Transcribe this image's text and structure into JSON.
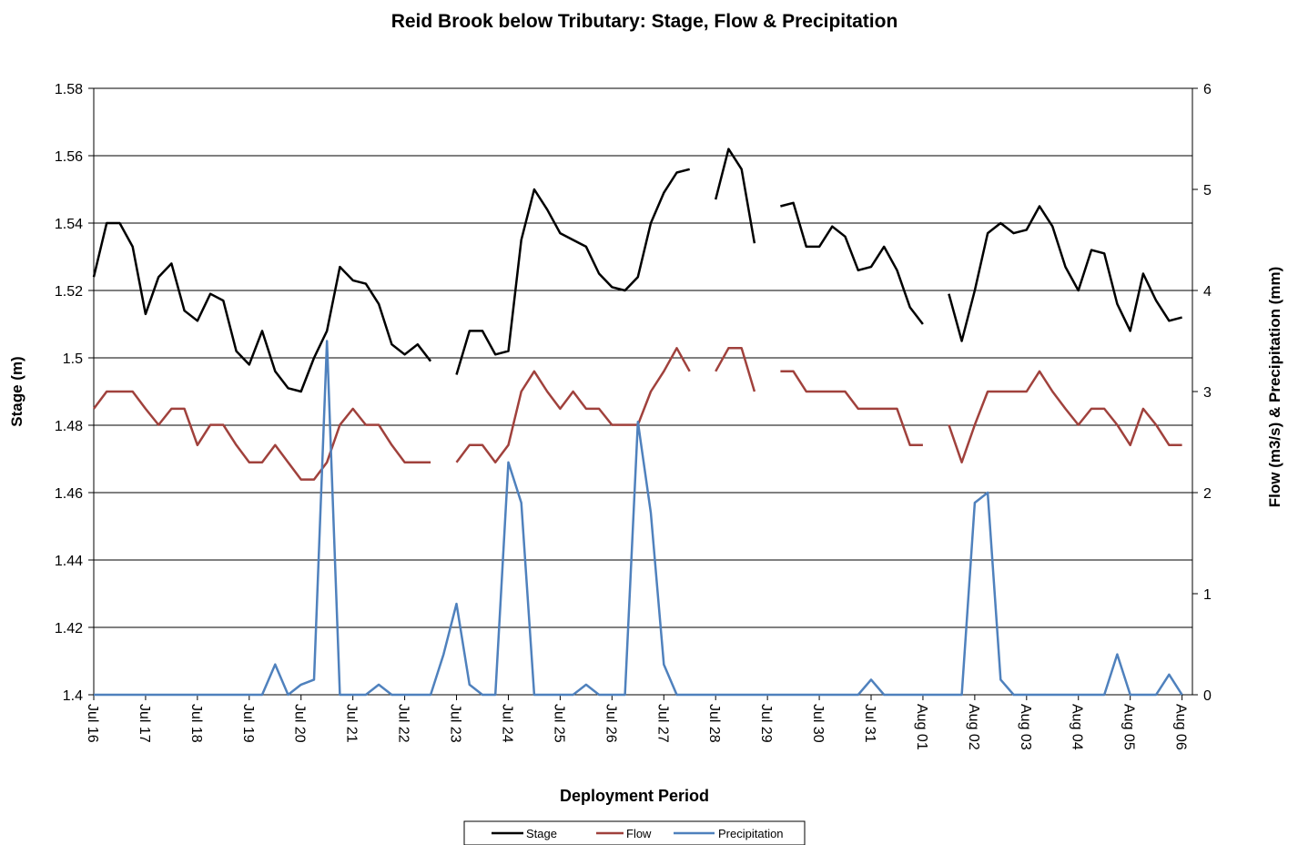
{
  "chart_data": {
    "type": "line",
    "title": "Reid Brook below Tributary:  Stage, Flow & Precipitation",
    "x_label": "Deployment Period",
    "y_label": "Stage (m)",
    "y2_label": "Flow (m3/s) & Precipitation (mm)",
    "x": [
      0,
      0.25,
      0.5,
      0.75,
      1,
      1.25,
      1.5,
      1.75,
      2,
      2.25,
      2.5,
      2.75,
      3,
      3.25,
      3.5,
      3.75,
      4,
      4.25,
      4.5,
      4.75,
      5,
      5.25,
      5.5,
      5.75,
      6,
      6.25,
      6.5,
      6.75,
      7,
      7.25,
      7.5,
      7.75,
      8,
      8.25,
      8.5,
      8.75,
      9,
      9.25,
      9.5,
      9.75,
      10,
      10.25,
      10.5,
      10.75,
      11,
      11.25,
      11.5,
      11.75,
      12,
      12.25,
      12.5,
      12.75,
      13,
      13.25,
      13.5,
      13.75,
      14,
      14.25,
      14.5,
      14.75,
      15,
      15.25,
      15.5,
      15.75,
      16,
      16.25,
      16.5,
      16.75,
      17,
      17.25,
      17.5,
      17.75,
      18,
      18.25,
      18.5,
      18.75,
      19,
      19.25,
      19.5,
      19.75,
      20,
      20.25,
      20.5,
      20.75,
      21
    ],
    "xlim": [
      0,
      21.2
    ],
    "xticks": [
      {
        "value": 0,
        "label": "Jul 16"
      },
      {
        "value": 1,
        "label": "Jul 17"
      },
      {
        "value": 2,
        "label": "Jul 18"
      },
      {
        "value": 3,
        "label": "Jul 19"
      },
      {
        "value": 4,
        "label": "Jul 20"
      },
      {
        "value": 5,
        "label": "Jul 21"
      },
      {
        "value": 6,
        "label": "Jul 22"
      },
      {
        "value": 7,
        "label": "Jul 23"
      },
      {
        "value": 8,
        "label": "Jul 24"
      },
      {
        "value": 9,
        "label": "Jul 25"
      },
      {
        "value": 10,
        "label": "Jul 26"
      },
      {
        "value": 11,
        "label": "Jul 27"
      },
      {
        "value": 12,
        "label": "Jul 28"
      },
      {
        "value": 13,
        "label": "Jul 29"
      },
      {
        "value": 14,
        "label": "Jul 30"
      },
      {
        "value": 15,
        "label": "Jul 31"
      },
      {
        "value": 16,
        "label": "Aug 01"
      },
      {
        "value": 17,
        "label": "Aug 02"
      },
      {
        "value": 18,
        "label": "Aug 03"
      },
      {
        "value": 19,
        "label": "Aug 04"
      },
      {
        "value": 20,
        "label": "Aug 05"
      },
      {
        "value": 21,
        "label": "Aug 06"
      }
    ],
    "ylim": [
      1.4,
      1.58
    ],
    "yticks": [
      1.4,
      1.42,
      1.44,
      1.46,
      1.48,
      1.5,
      1.52,
      1.54,
      1.56,
      1.58
    ],
    "y2lim": [
      0,
      6
    ],
    "y2ticks": [
      0,
      1,
      2,
      3,
      4,
      5,
      6
    ],
    "grid": true,
    "legend": "bottom",
    "series": [
      {
        "name": "Stage",
        "color": "#000000",
        "values": [
          1.524,
          1.54,
          1.54,
          1.533,
          1.513,
          1.524,
          1.528,
          1.514,
          1.511,
          1.519,
          1.517,
          1.502,
          1.498,
          1.508,
          1.496,
          1.491,
          1.49,
          1.5,
          1.508,
          1.527,
          1.523,
          1.522,
          1.516,
          1.504,
          1.501,
          1.504,
          1.499,
          null,
          1.495,
          1.508,
          1.508,
          1.501,
          1.502,
          1.535,
          1.55,
          1.544,
          1.537,
          1.535,
          1.533,
          1.525,
          1.521,
          1.52,
          1.524,
          1.54,
          1.549,
          1.555,
          1.556,
          null,
          1.547,
          1.562,
          1.556,
          1.534,
          null,
          1.545,
          1.546,
          1.533,
          1.533,
          1.539,
          1.536,
          1.526,
          1.527,
          1.533,
          1.526,
          1.515,
          1.51,
          null,
          1.519,
          1.505,
          1.52,
          1.537,
          1.54,
          1.537,
          1.538,
          1.545,
          1.539,
          1.527,
          1.52,
          1.532,
          1.531,
          1.516,
          1.508,
          1.525,
          1.517,
          1.511,
          1.512
        ]
      },
      {
        "name": "Flow",
        "color": "#a0413c",
        "axis": "y2",
        "values": [
          2.83,
          3.0,
          3.0,
          3.0,
          2.83,
          2.67,
          2.83,
          2.83,
          2.47,
          2.67,
          2.67,
          2.47,
          2.3,
          2.3,
          2.47,
          2.3,
          2.13,
          2.13,
          2.3,
          2.67,
          2.83,
          2.67,
          2.67,
          2.47,
          2.3,
          2.3,
          2.3,
          null,
          2.3,
          2.47,
          2.47,
          2.3,
          2.47,
          3.0,
          3.2,
          3.0,
          2.83,
          3.0,
          2.83,
          2.83,
          2.67,
          2.67,
          2.67,
          3.0,
          3.2,
          3.43,
          3.2,
          null,
          3.2,
          3.43,
          3.43,
          3.0,
          null,
          3.2,
          3.2,
          3.0,
          3.0,
          3.0,
          3.0,
          2.83,
          2.83,
          2.83,
          2.83,
          2.47,
          2.47,
          null,
          2.67,
          2.3,
          2.67,
          3.0,
          3.0,
          3.0,
          3.0,
          3.2,
          3.0,
          2.83,
          2.67,
          2.83,
          2.83,
          2.67,
          2.47,
          2.83,
          2.67,
          2.47,
          2.47
        ]
      },
      {
        "name": "Precipitation",
        "color": "#4f81bd",
        "axis": "y2",
        "values": [
          0,
          0,
          0,
          0,
          0,
          0,
          0,
          0,
          0,
          0,
          0,
          0,
          0,
          0,
          0.3,
          0,
          0.1,
          0.15,
          3.5,
          0,
          0,
          0,
          0.1,
          0,
          0,
          0,
          0,
          0.4,
          0.9,
          0.1,
          0,
          0,
          2.3,
          1.9,
          0,
          0,
          0,
          0,
          0.1,
          0,
          0,
          0,
          2.7,
          1.8,
          0.3,
          0,
          0,
          0,
          0,
          0,
          0,
          0,
          0,
          0,
          0,
          0,
          0,
          0,
          0,
          0,
          0.15,
          0,
          0,
          0,
          0,
          0,
          0,
          0,
          1.9,
          2.0,
          0.15,
          0,
          0,
          0,
          0,
          0,
          0,
          0,
          0,
          0.4,
          0,
          0,
          0,
          0.2,
          0
        ]
      }
    ]
  }
}
